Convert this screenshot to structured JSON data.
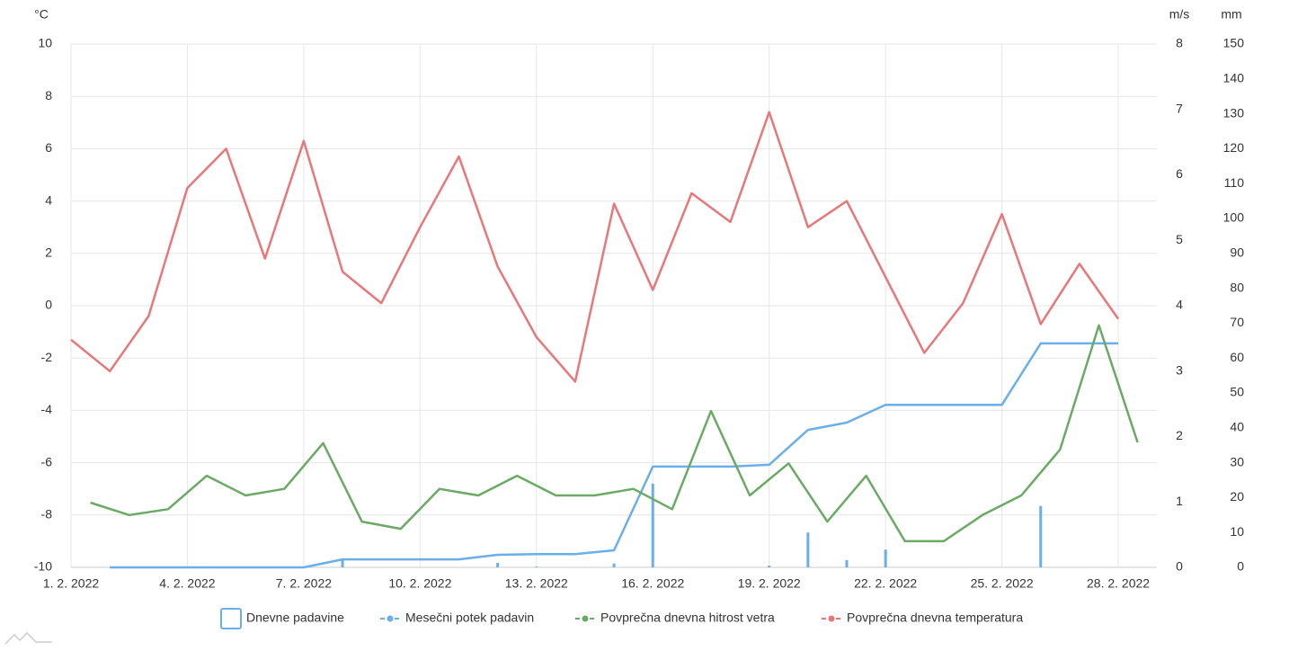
{
  "chart_data": {
    "type": "line",
    "categories": [
      "1. 2. 2022",
      null,
      null,
      "4. 2. 2022",
      null,
      null,
      "7. 2. 2022",
      null,
      null,
      "10. 2. 2022",
      null,
      null,
      "13. 2. 2022",
      null,
      null,
      "16. 2. 2022",
      null,
      null,
      "19. 2. 2022",
      null,
      null,
      "22. 2. 2022",
      null,
      null,
      "25. 2. 2022",
      null,
      null,
      "28. 2. 2022"
    ],
    "y_label": "°C",
    "y2_label": "m/s",
    "y3_label": "mm",
    "ylim": [
      -10,
      10
    ],
    "yticks": [
      -10,
      -8,
      -6,
      -4,
      -2,
      0,
      2,
      4,
      6,
      8,
      10
    ],
    "y2lim": [
      0,
      8
    ],
    "y2ticks": [
      0,
      1,
      2,
      3,
      4,
      5,
      6,
      7,
      8
    ],
    "y3lim": [
      0,
      150
    ],
    "y3ticks": [
      0,
      10,
      20,
      30,
      40,
      50,
      60,
      70,
      80,
      90,
      100,
      110,
      120,
      130,
      140,
      150
    ],
    "grid": true,
    "legend": "bottom",
    "series": [
      {
        "name": "Dnevne padavine",
        "type": "bar",
        "axis": "y3",
        "color": "#6aaeea",
        "values": [
          0,
          0,
          0,
          0,
          0,
          0,
          0,
          2.3,
          0,
          0,
          0,
          1.3,
          0.2,
          0,
          1.1,
          24.0,
          0,
          0,
          0.5,
          10.0,
          2.1,
          5.1,
          0,
          0,
          0,
          17.6,
          0,
          0
        ]
      },
      {
        "name": "Mesečni potek padavin",
        "type": "line",
        "axis": "y3",
        "color": "#6aaeea",
        "values": [
          null,
          0,
          0,
          0,
          0,
          0,
          0,
          2.3,
          2.3,
          2.3,
          2.3,
          3.6,
          3.8,
          3.8,
          4.9,
          28.9,
          28.9,
          28.9,
          29.4,
          39.4,
          41.5,
          46.6,
          46.6,
          46.6,
          46.6,
          64.2,
          64.2,
          64.2
        ]
      },
      {
        "name": "Povprečna dnevna hitrost vetra",
        "type": "line",
        "axis": "y2",
        "color": "#6aaa64",
        "values": [
          0.99,
          0.8,
          0.89,
          1.4,
          1.1,
          1.2,
          1.9,
          0.7,
          0.59,
          1.2,
          1.1,
          1.4,
          1.1,
          1.1,
          1.2,
          0.89,
          2.39,
          1.1,
          1.59,
          0.7,
          1.4,
          0.4,
          0.4,
          0.8,
          1.1,
          1.8,
          3.7,
          1.91
        ]
      },
      {
        "name": "Povprečna dnevna temperatura",
        "type": "line",
        "axis": "y",
        "color": "#e8777a",
        "values": [
          -1.3,
          -2.5,
          -0.4,
          4.5,
          6.0,
          1.8,
          6.3,
          1.3,
          0.1,
          3.0,
          5.7,
          1.5,
          -1.2,
          -2.9,
          3.9,
          0.6,
          4.3,
          3.2,
          7.4,
          3.0,
          4.0,
          1.1,
          -1.8,
          0.1,
          3.5,
          -0.7,
          1.6,
          -0.5
        ]
      }
    ]
  }
}
